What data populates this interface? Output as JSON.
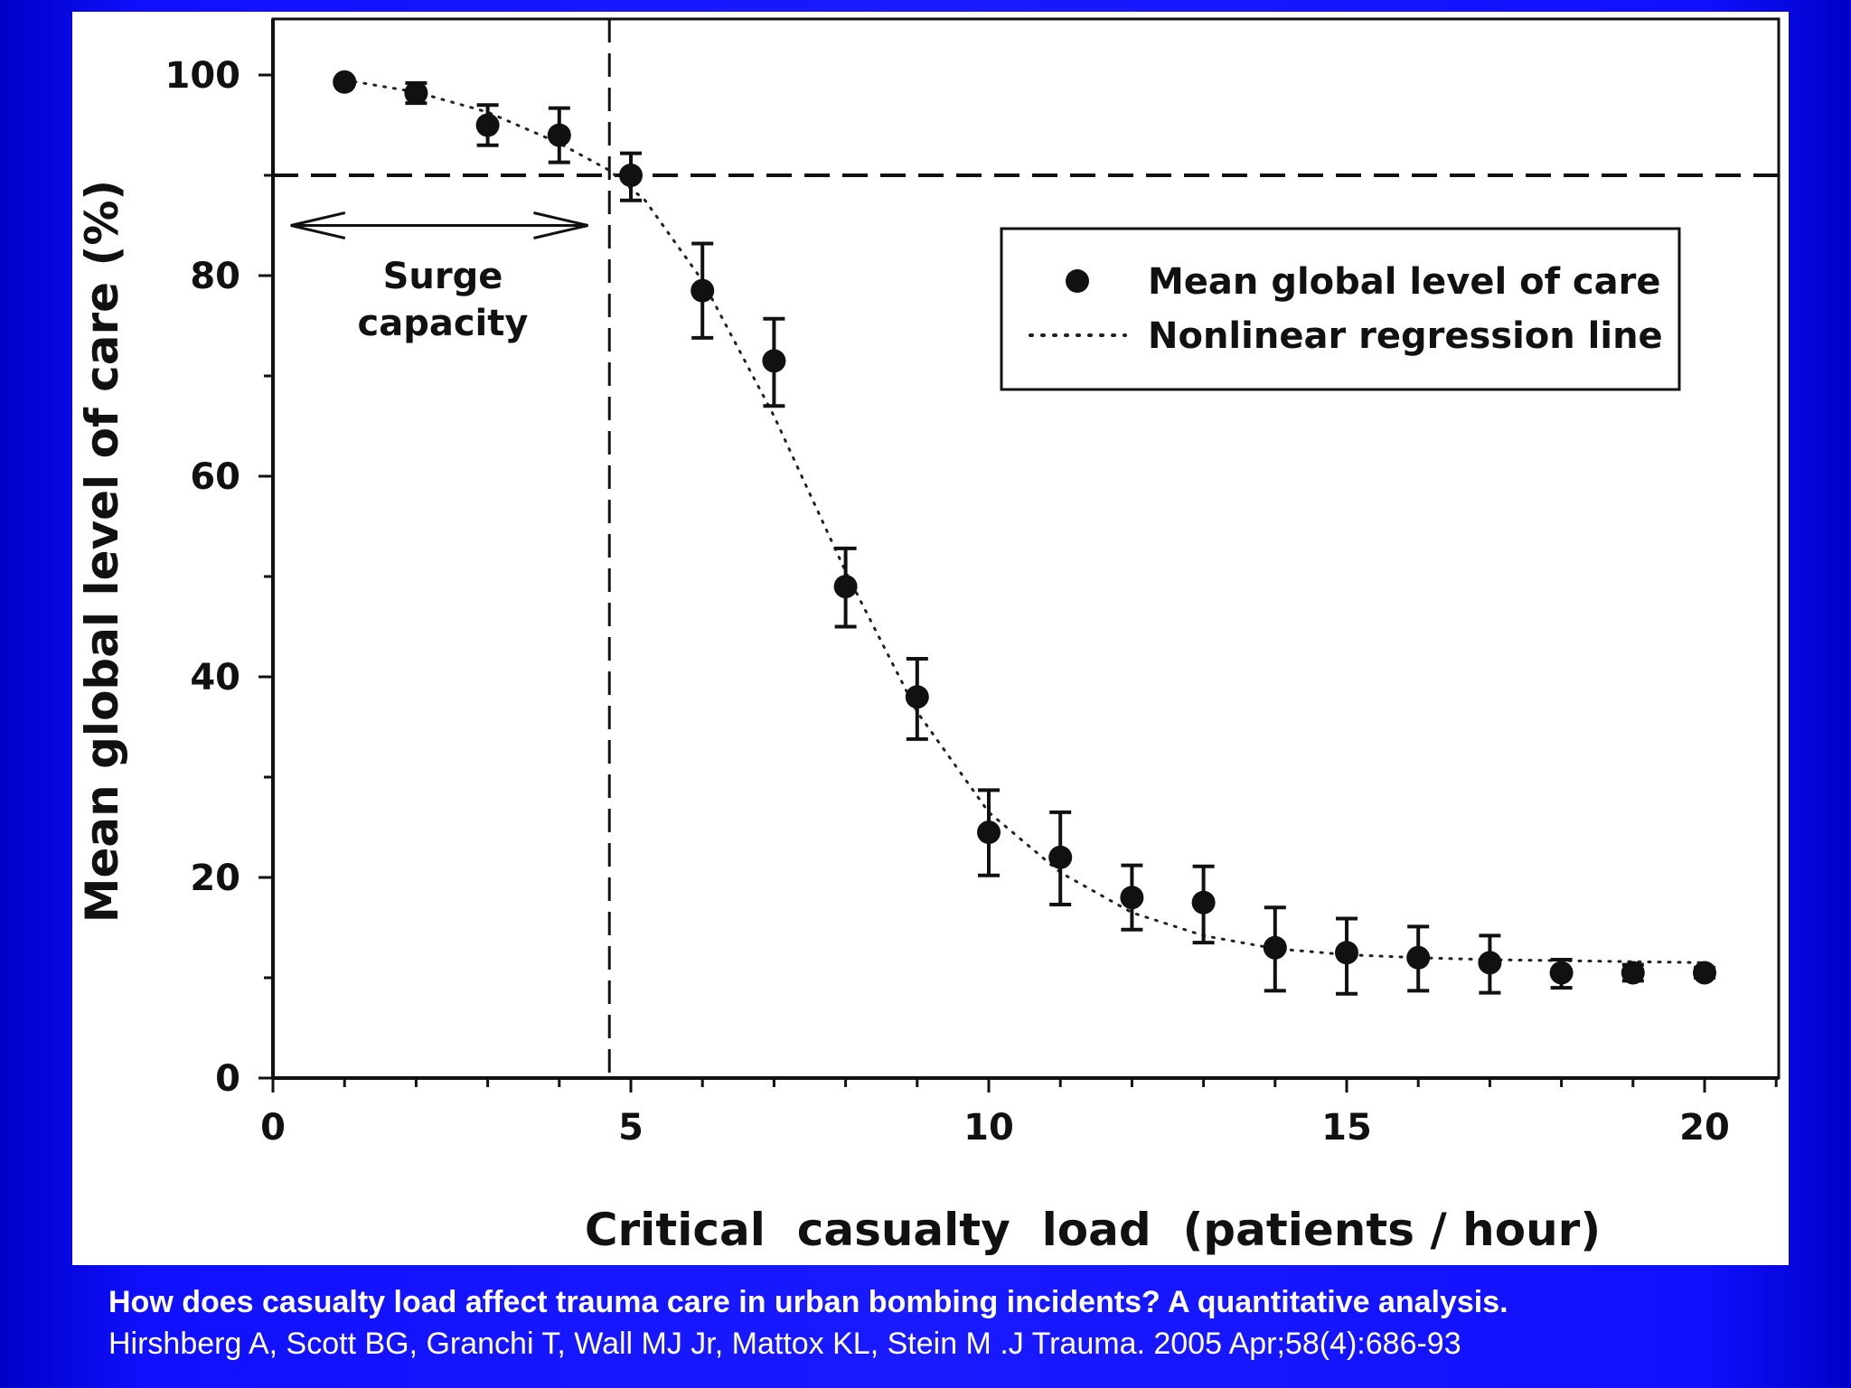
{
  "chart_data": {
    "type": "scatter",
    "title": "",
    "xlabel": "Critical  casualty  load  (patients / hour)",
    "ylabel": "Mean global level of care (%)",
    "xlim": [
      0,
      21
    ],
    "ylim": [
      0,
      105
    ],
    "x_ticks": [
      0,
      5,
      10,
      15,
      20
    ],
    "y_ticks": [
      0,
      20,
      40,
      60,
      80,
      100
    ],
    "grid": false,
    "legend_position": "top-right",
    "series": [
      {
        "name": "Mean global level of care",
        "style": "points-with-error-bars",
        "x": [
          1,
          2,
          3,
          4,
          5,
          6,
          7,
          8,
          9,
          10,
          11,
          12,
          13,
          14,
          15,
          16,
          17,
          18,
          19,
          20
        ],
        "y": [
          99.3,
          98.2,
          95,
          94,
          90,
          78.5,
          71.5,
          49,
          38,
          24.5,
          22,
          18,
          17.5,
          13,
          12.5,
          12,
          11.5,
          10.5,
          10.5,
          10.5
        ],
        "err_low": [
          0.3,
          1,
          2,
          2.7,
          2.5,
          4.7,
          4.5,
          4,
          4.2,
          4.3,
          4.7,
          3.2,
          4,
          4.3,
          4.1,
          3.3,
          3,
          1.5,
          0.8,
          0.5
        ],
        "err_high": [
          0.3,
          1,
          2,
          2.7,
          2.2,
          4.7,
          4.2,
          3.8,
          3.8,
          4.2,
          4.5,
          3.2,
          3.6,
          4,
          3.4,
          3.1,
          2.7,
          1.3,
          0.8,
          0.5
        ]
      },
      {
        "name": "Nonlinear regression line",
        "style": "dotted-line",
        "x": [
          1,
          2,
          3,
          4,
          4.7,
          5.2,
          6,
          7,
          8,
          9,
          10,
          11,
          12,
          13,
          14,
          15,
          16,
          17,
          18,
          19,
          20
        ],
        "y": [
          99.5,
          98.3,
          96.3,
          93.2,
          90.5,
          87.5,
          79.5,
          66,
          50.5,
          36.5,
          26.5,
          20.5,
          16.5,
          14.2,
          12.9,
          12.3,
          12,
          11.8,
          11.7,
          11.6,
          11.5
        ]
      }
    ],
    "reference_lines": [
      {
        "orientation": "horizontal",
        "value": 90,
        "style": "dashed"
      },
      {
        "orientation": "vertical",
        "value": 4.7,
        "style": "dashed"
      }
    ],
    "annotations": [
      {
        "text_lines": [
          "Surge",
          "capacity"
        ],
        "arrow": "double-headed",
        "x_range": [
          0.25,
          4.4
        ],
        "y": 85
      }
    ]
  },
  "caption": {
    "title": "How does casualty load affect trauma care in urban bombing incidents? A quantitative analysis.",
    "citation": "Hirshberg A, Scott BG, Granchi T, Wall MJ Jr, Mattox KL, Stein M  .J Trauma. 2005 Apr;58(4):686-93"
  }
}
